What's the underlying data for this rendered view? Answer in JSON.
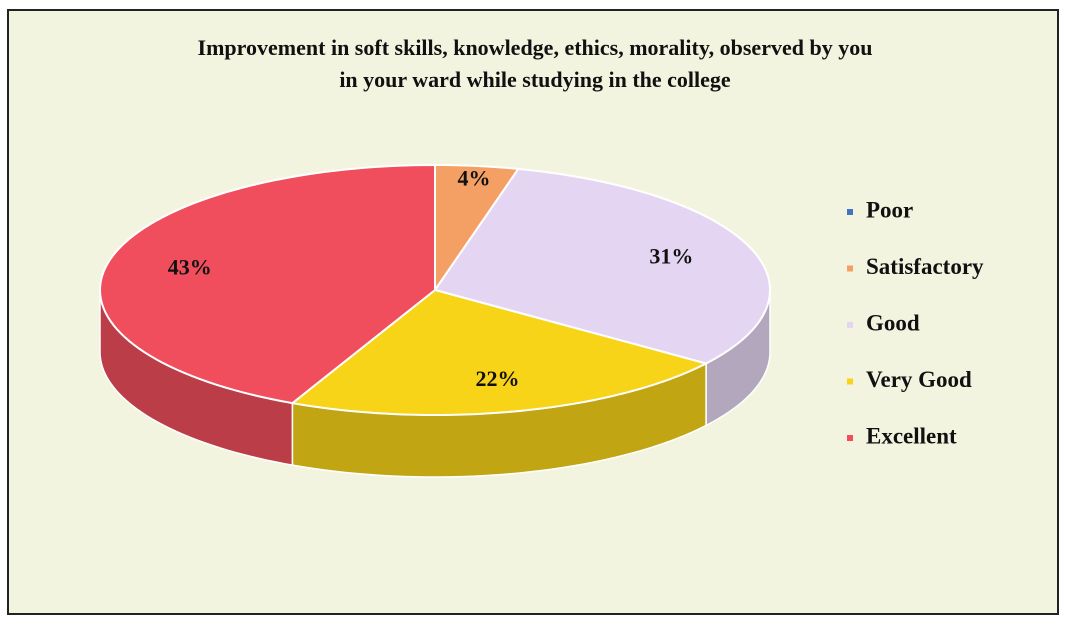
{
  "chart_data": {
    "type": "pie",
    "title": "Improvement in soft skills, knowledge, ethics, morality, observed by you in your ward while studying in the college",
    "categories": [
      "Poor",
      "Satisfactory",
      "Good",
      "Very Good",
      "Excellent"
    ],
    "values": [
      0,
      4,
      31,
      22,
      43
    ],
    "value_labels": [
      null,
      "4%",
      "31%",
      "22%",
      "43%"
    ],
    "colors": [
      "#4472c4",
      "#f4a064",
      "#e4d6f2",
      "#f7d417",
      "#f04e5c"
    ],
    "legend": "right"
  }
}
